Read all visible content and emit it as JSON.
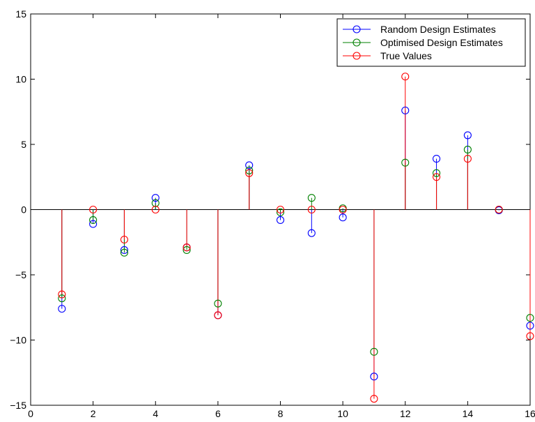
{
  "chart_data": {
    "type": "stem",
    "title": "",
    "xlabel": "",
    "ylabel": "",
    "xlim": [
      0,
      16
    ],
    "ylim": [
      -15,
      15
    ],
    "xticks": [
      0,
      2,
      4,
      6,
      8,
      10,
      12,
      14,
      16
    ],
    "yticks": [
      -15,
      -10,
      -5,
      0,
      5,
      10,
      15
    ],
    "xtick_labels": [
      "0",
      "2",
      "4",
      "6",
      "8",
      "10",
      "12",
      "14",
      "16"
    ],
    "ytick_labels": [
      "−15",
      "−10",
      "−5",
      "0",
      "5",
      "10",
      "15"
    ],
    "grid": false,
    "legend_position": "top-right",
    "x": [
      1,
      2,
      3,
      4,
      5,
      6,
      7,
      8,
      9,
      10,
      11,
      12,
      13,
      14,
      15,
      16
    ],
    "series": [
      {
        "name": "Random Design Estimates",
        "color": "#0000ff",
        "values": [
          -7.6,
          -1.1,
          -3.1,
          0.9,
          -2.9,
          -8.1,
          3.4,
          -0.8,
          -1.8,
          -0.6,
          -12.8,
          7.6,
          3.9,
          5.7,
          -0.05,
          -8.9
        ]
      },
      {
        "name": "Optimised Design Estimates",
        "color": "#008000",
        "values": [
          -6.8,
          -0.8,
          -3.3,
          0.5,
          -3.1,
          -7.2,
          3.0,
          -0.2,
          0.9,
          0.1,
          -10.9,
          3.6,
          2.8,
          4.6,
          0.0,
          -8.3
        ]
      },
      {
        "name": "True Values",
        "color": "#ff0000",
        "values": [
          -6.5,
          0.0,
          -2.3,
          0.0,
          -2.9,
          -8.1,
          2.8,
          0.0,
          0.0,
          0.0,
          -14.5,
          10.2,
          2.5,
          3.9,
          0.0,
          -9.7
        ]
      }
    ]
  }
}
